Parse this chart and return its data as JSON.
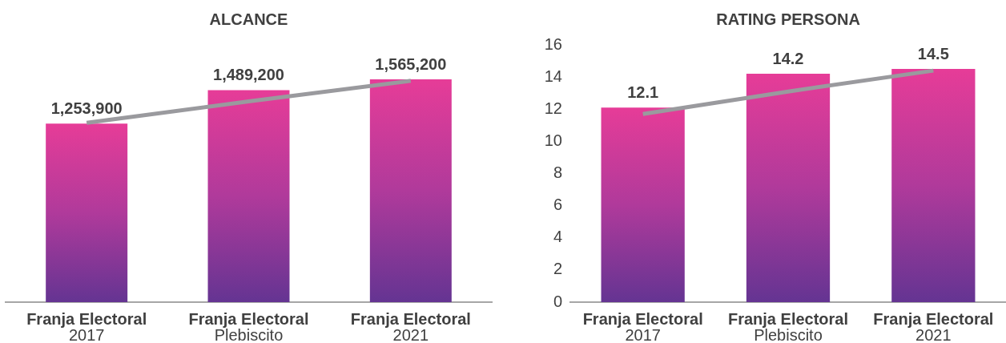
{
  "chart_data": [
    {
      "type": "bar",
      "title": "ALCANCE",
      "categories": [
        "Franja Electoral\n2017",
        "Franja Electoral\nPlebiscito",
        "Franja Electoral\n2021"
      ],
      "series": [
        {
          "color": "#b03a9b",
          "values": [
            1253900,
            1489200,
            1565200
          ],
          "value_labels": [
            "1,253,900",
            "1,489,200",
            "1,565,200"
          ]
        },
        {
          "type": "line",
          "color": "#9a9a9e",
          "values": [
            1260000,
            1410000,
            1555000
          ]
        }
      ],
      "tick_labels": "x"
    },
    {
      "type": "bar",
      "title": "RATING PERSONA",
      "categories": [
        "Franja Electoral\n2017",
        "Franja Electoral\nPlebiscito",
        "Franja Electoral\n2021"
      ],
      "series": [
        {
          "color": "#b03a9b",
          "values": [
            12.1,
            14.2,
            14.5
          ],
          "value_labels": [
            "12.1",
            "14.2",
            "14.5"
          ]
        },
        {
          "type": "line",
          "color": "#9a9a9e",
          "values": [
            11.7,
            13.1,
            14.4
          ]
        }
      ],
      "ylim": [
        0,
        16
      ],
      "yticks": [
        0,
        2,
        4,
        6,
        8,
        10,
        12,
        14,
        16
      ]
    }
  ]
}
